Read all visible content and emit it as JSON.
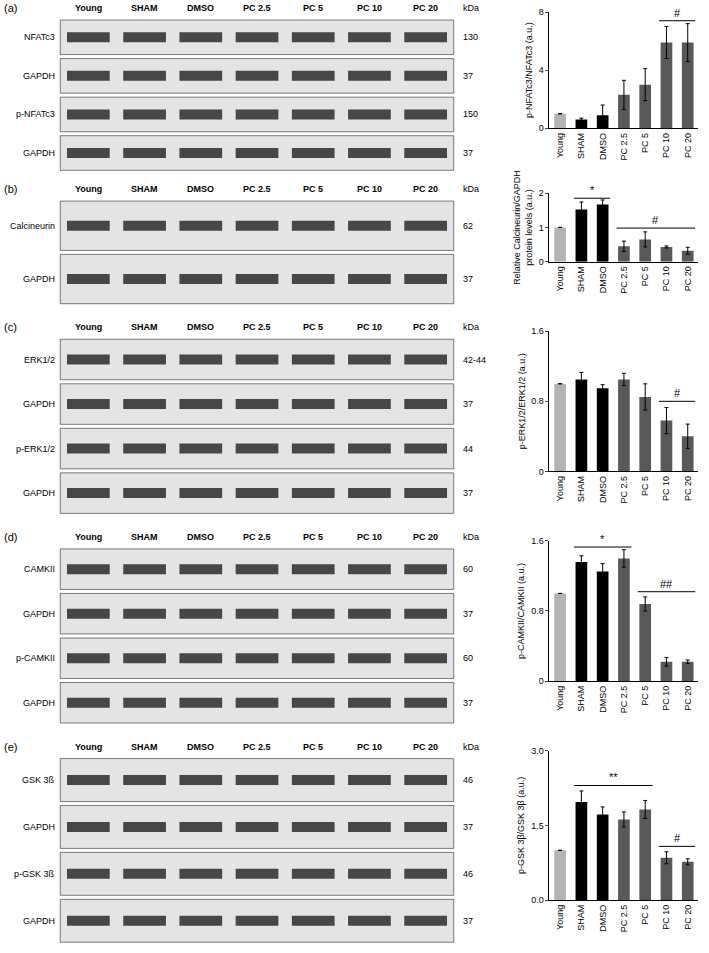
{
  "chart_data": [
    {
      "type": "bar",
      "panel": "(a)",
      "y_label": "p-NFATc3/NFATc3 (a.u.)",
      "categories": [
        "Young",
        "SHAM",
        "DMSO",
        "PC 2.5",
        "PC 5",
        "PC 10",
        "PC 20"
      ],
      "values": [
        1,
        0.6,
        0.9,
        2.3,
        3.0,
        5.9,
        5.9
      ],
      "errors": [
        0,
        0.1,
        0.7,
        1.0,
        1.1,
        1.1,
        1.3
      ],
      "colors": [
        "#b3b3b3",
        "#000000",
        "#000000",
        "#595959",
        "#595959",
        "#595959",
        "#595959"
      ],
      "ylim": [
        0,
        8
      ],
      "yticks": [
        0,
        4,
        8
      ],
      "significance": [
        {
          "text": "#",
          "from": "PC 10",
          "to": "PC 20",
          "y": 7.4
        }
      ],
      "blot": {
        "lanes": [
          "Young",
          "SHAM",
          "DMSO",
          "PC 2.5",
          "PC 5",
          "PC 10",
          "PC 20"
        ],
        "unit": "kDa",
        "rows": [
          {
            "label": "NFATc3",
            "kda": "130"
          },
          {
            "label": "GAPDH",
            "kda": "37"
          },
          {
            "label": "p-NFATc3",
            "kda": "150"
          },
          {
            "label": "GAPDH",
            "kda": "37"
          }
        ]
      }
    },
    {
      "type": "bar",
      "panel": "(b)",
      "y_label": "Relative Calcineurin/GAPDH protein levels (a.u.)",
      "categories": [
        "Young",
        "SHAM",
        "DMSO",
        "PC 2.5",
        "PC 5",
        "PC 10",
        "PC 20"
      ],
      "values": [
        1,
        1.52,
        1.67,
        0.45,
        0.65,
        0.43,
        0.32
      ],
      "errors": [
        0,
        0.22,
        0.13,
        0.15,
        0.22,
        0.03,
        0.1
      ],
      "colors": [
        "#b3b3b3",
        "#000000",
        "#000000",
        "#595959",
        "#595959",
        "#595959",
        "#595959"
      ],
      "ylim": [
        0,
        2
      ],
      "yticks": [
        0,
        1,
        2
      ],
      "significance": [
        {
          "text": "*",
          "from": "SHAM",
          "to": "DMSO",
          "y": 1.85
        },
        {
          "text": "#",
          "from": "PC 2.5",
          "to": "PC 20",
          "y": 0.98
        }
      ],
      "blot": {
        "lanes": [
          "Young",
          "SHAM",
          "DMSO",
          "PC 2.5",
          "PC 5",
          "PC 10",
          "PC 20"
        ],
        "unit": "kDa",
        "rows": [
          {
            "label": "Calcineurin",
            "kda": "62"
          },
          {
            "label": "GAPDH",
            "kda": "37"
          }
        ]
      }
    },
    {
      "type": "bar",
      "panel": "(c)",
      "y_label": "p-ERK1/2/ERK1/2 (a.u.)",
      "categories": [
        "Young",
        "SHAM",
        "DMSO",
        "PC 2.5",
        "PC 5",
        "PC 10",
        "PC 20"
      ],
      "values": [
        1,
        1.05,
        0.95,
        1.05,
        0.85,
        0.58,
        0.4
      ],
      "errors": [
        0,
        0.08,
        0.04,
        0.07,
        0.15,
        0.15,
        0.14
      ],
      "colors": [
        "#b3b3b3",
        "#000000",
        "#000000",
        "#595959",
        "#595959",
        "#595959",
        "#595959"
      ],
      "ylim": [
        0,
        1.6
      ],
      "yticks": [
        0,
        0.8,
        1.6
      ],
      "significance": [
        {
          "text": "#",
          "from": "PC 10",
          "to": "PC 20",
          "y": 0.8
        }
      ],
      "blot": {
        "lanes": [
          "Young",
          "SHAM",
          "DMSO",
          "PC 2.5",
          "PC 5",
          "PC 10",
          "PC 20"
        ],
        "unit": "kDa",
        "rows": [
          {
            "label": "ERK1/2",
            "kda": "42-44"
          },
          {
            "label": "GAPDH",
            "kda": "37"
          },
          {
            "label": "p-ERK1/2",
            "kda": "44"
          },
          {
            "label": "GAPDH",
            "kda": "37"
          }
        ]
      }
    },
    {
      "type": "bar",
      "panel": "(d)",
      "y_label": "p-CAMKII/CAMKII (a.u.)",
      "categories": [
        "Young",
        "SHAM",
        "DMSO",
        "PC 2.5",
        "PC 5",
        "PC 10",
        "PC 20"
      ],
      "values": [
        1,
        1.36,
        1.25,
        1.4,
        0.88,
        0.22,
        0.22
      ],
      "errors": [
        0,
        0.07,
        0.09,
        0.1,
        0.08,
        0.05,
        0.02
      ],
      "colors": [
        "#b3b3b3",
        "#000000",
        "#000000",
        "#595959",
        "#595959",
        "#595959",
        "#595959"
      ],
      "ylim": [
        0,
        1.6
      ],
      "yticks": [
        0,
        0.8,
        1.6
      ],
      "significance": [
        {
          "text": "*",
          "from": "SHAM",
          "to": "PC 2.5",
          "y": 1.53
        },
        {
          "text": "##",
          "from": "PC 5",
          "to": "PC 20",
          "y": 1.02
        }
      ],
      "blot": {
        "lanes": [
          "Young",
          "SHAM",
          "DMSO",
          "PC 2.5",
          "PC 5",
          "PC 10",
          "PC 20"
        ],
        "unit": "kDa",
        "rows": [
          {
            "label": "CAMKII",
            "kda": "60"
          },
          {
            "label": "GAPDH",
            "kda": "37"
          },
          {
            "label": "p-CAMKII",
            "kda": "60"
          },
          {
            "label": "GAPDH",
            "kda": "37"
          }
        ]
      }
    },
    {
      "type": "bar",
      "panel": "(e)",
      "y_label": "p-GSK 3β/GSK 3β (a.u.)",
      "categories": [
        "Young",
        "SHAM",
        "DMSO",
        "PC 2.5",
        "PC 5",
        "PC 10",
        "PC 20"
      ],
      "values": [
        1,
        1.97,
        1.72,
        1.62,
        1.82,
        0.85,
        0.77
      ],
      "errors": [
        0,
        0.22,
        0.15,
        0.15,
        0.18,
        0.12,
        0.06
      ],
      "colors": [
        "#b3b3b3",
        "#000000",
        "#000000",
        "#595959",
        "#595959",
        "#595959",
        "#595959"
      ],
      "ylim": [
        0,
        3
      ],
      "yticks": [
        {
          "value": 0,
          "label": "0.0"
        },
        {
          "value": 1.5,
          "label": "1.5"
        },
        {
          "value": 3,
          "label": "3.0"
        }
      ],
      "significance": [
        {
          "text": "**",
          "from": "SHAM",
          "to": "PC 5",
          "y": 2.3
        },
        {
          "text": "#",
          "from": "PC 10",
          "to": "PC 20",
          "y": 1.08
        }
      ],
      "blot": {
        "lanes": [
          "Young",
          "SHAM",
          "DMSO",
          "PC 2.5",
          "PC 5",
          "PC 10",
          "PC 20"
        ],
        "unit": "kDa",
        "rows": [
          {
            "label": "GSK 3ß",
            "kda": "46"
          },
          {
            "label": "GAPDH",
            "kda": "37"
          },
          {
            "label": "p-GSK 3ß",
            "kda": "46"
          },
          {
            "label": "GAPDH",
            "kda": "37"
          }
        ]
      }
    }
  ]
}
